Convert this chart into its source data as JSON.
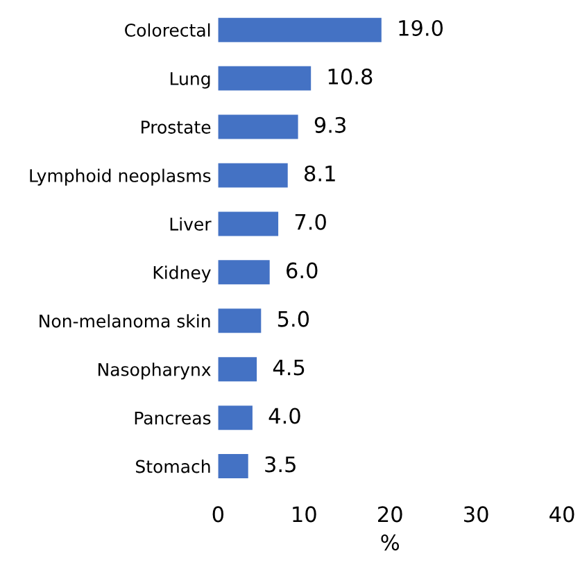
{
  "chart_data": {
    "type": "bar",
    "orientation": "horizontal",
    "xlabel": "%",
    "categories": [
      "Colorectal",
      "Lung",
      "Prostate",
      "Lymphoid neoplasms",
      "Liver",
      "Kidney",
      "Non-melanoma skin",
      "Nasopharynx",
      "Pancreas",
      "Stomach"
    ],
    "values": [
      19.0,
      10.8,
      9.3,
      8.1,
      7.0,
      6.0,
      5.0,
      4.5,
      4.0,
      3.5
    ],
    "value_labels": [
      "19.0",
      "10.8",
      "9.3",
      "8.1",
      "7.0",
      "6.0",
      "5.0",
      "4.5",
      "4.0",
      "3.5"
    ],
    "color": "#4472c4",
    "xlim": [
      0,
      40
    ],
    "xticks": [
      0,
      10,
      20,
      30,
      40
    ],
    "grid": false,
    "legend": false
  }
}
